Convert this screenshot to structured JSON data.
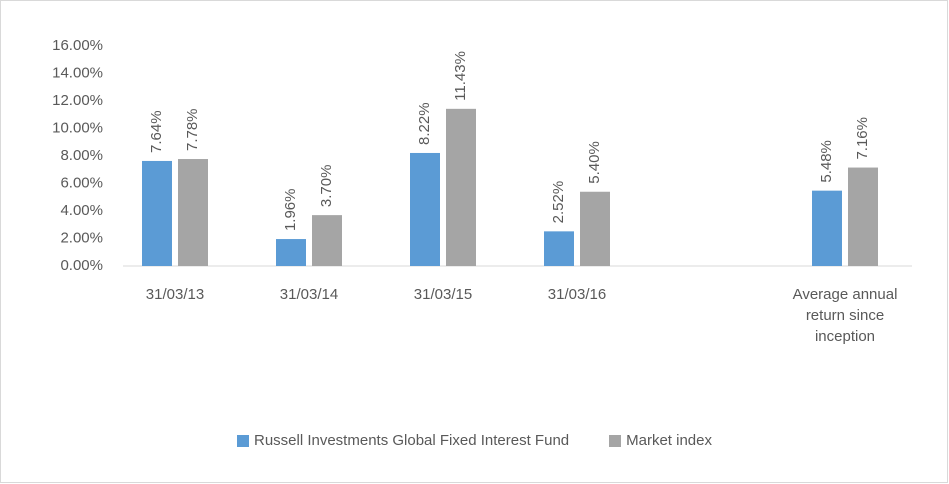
{
  "chart_data": {
    "type": "bar",
    "categories": [
      "31/03/13",
      "31/03/14",
      "31/03/15",
      "31/03/16",
      null,
      "Average annual return since inception"
    ],
    "series": [
      {
        "name": "Russell Investments Global Fixed Interest Fund",
        "color": "#5b9bd5",
        "values": [
          7.64,
          1.96,
          8.22,
          2.52,
          null,
          5.48
        ],
        "value_labels": [
          "7.64%",
          "1.96%",
          "8.22%",
          "2.52%",
          null,
          "5.48%"
        ]
      },
      {
        "name": "Market index",
        "color": "#a5a5a5",
        "values": [
          7.78,
          3.7,
          11.43,
          5.4,
          null,
          7.16
        ],
        "value_labels": [
          "7.78%",
          "3.70%",
          "11.43%",
          "5.40%",
          null,
          "7.16%"
        ]
      }
    ],
    "ylim": [
      0,
      16
    ],
    "yticks": [
      {
        "value": 0,
        "label": "0.00%"
      },
      {
        "value": 2,
        "label": "2.00%"
      },
      {
        "value": 4,
        "label": "4.00%"
      },
      {
        "value": 6,
        "label": "6.00%"
      },
      {
        "value": 8,
        "label": "8.00%"
      },
      {
        "value": 10,
        "label": "10.00%"
      },
      {
        "value": 12,
        "label": "12.00%"
      },
      {
        "value": 14,
        "label": "14.00%"
      },
      {
        "value": 16,
        "label": "16.00%"
      }
    ],
    "grid": false,
    "legend": "bottom"
  }
}
